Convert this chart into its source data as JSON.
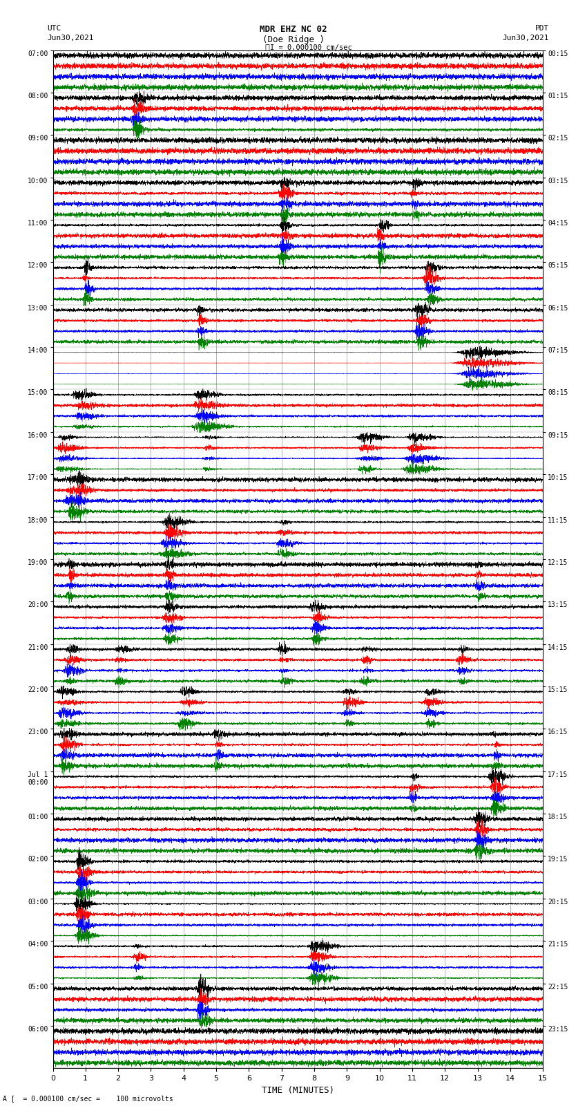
{
  "title_line1": "MDR EHZ NC 02",
  "title_line2": "(Doe Ridge )",
  "title_line3": "I = 0.000100 cm/sec",
  "label_left_top1": "UTC",
  "label_left_top2": "Jun30,2021",
  "label_right_top1": "PDT",
  "label_right_top2": "Jun30,2021",
  "xlabel": "TIME (MINUTES)",
  "footer": "A [  = 0.000100 cm/sec =    100 microvolts",
  "utc_labels": [
    "07:00",
    "08:00",
    "09:00",
    "10:00",
    "11:00",
    "12:00",
    "13:00",
    "14:00",
    "15:00",
    "16:00",
    "17:00",
    "18:00",
    "19:00",
    "20:00",
    "21:00",
    "22:00",
    "23:00",
    "Jul 1\n00:00",
    "01:00",
    "02:00",
    "03:00",
    "04:00",
    "05:00",
    "06:00"
  ],
  "pdt_labels": [
    "00:15",
    "01:15",
    "02:15",
    "03:15",
    "04:15",
    "05:15",
    "06:15",
    "07:15",
    "08:15",
    "09:15",
    "10:15",
    "11:15",
    "12:15",
    "13:15",
    "14:15",
    "15:15",
    "16:15",
    "17:15",
    "18:15",
    "19:15",
    "20:15",
    "21:15",
    "22:15",
    "23:15"
  ],
  "n_rows": 24,
  "traces_per_row": 4,
  "colors": [
    "black",
    "red",
    "blue",
    "green"
  ],
  "bg_color": "#ffffff",
  "grid_color": "#999999",
  "x_min": 0,
  "x_max": 15,
  "x_ticks": [
    0,
    1,
    2,
    3,
    4,
    5,
    6,
    7,
    8,
    9,
    10,
    11,
    12,
    13,
    14,
    15
  ],
  "seed": 12345,
  "n_points": 4500
}
